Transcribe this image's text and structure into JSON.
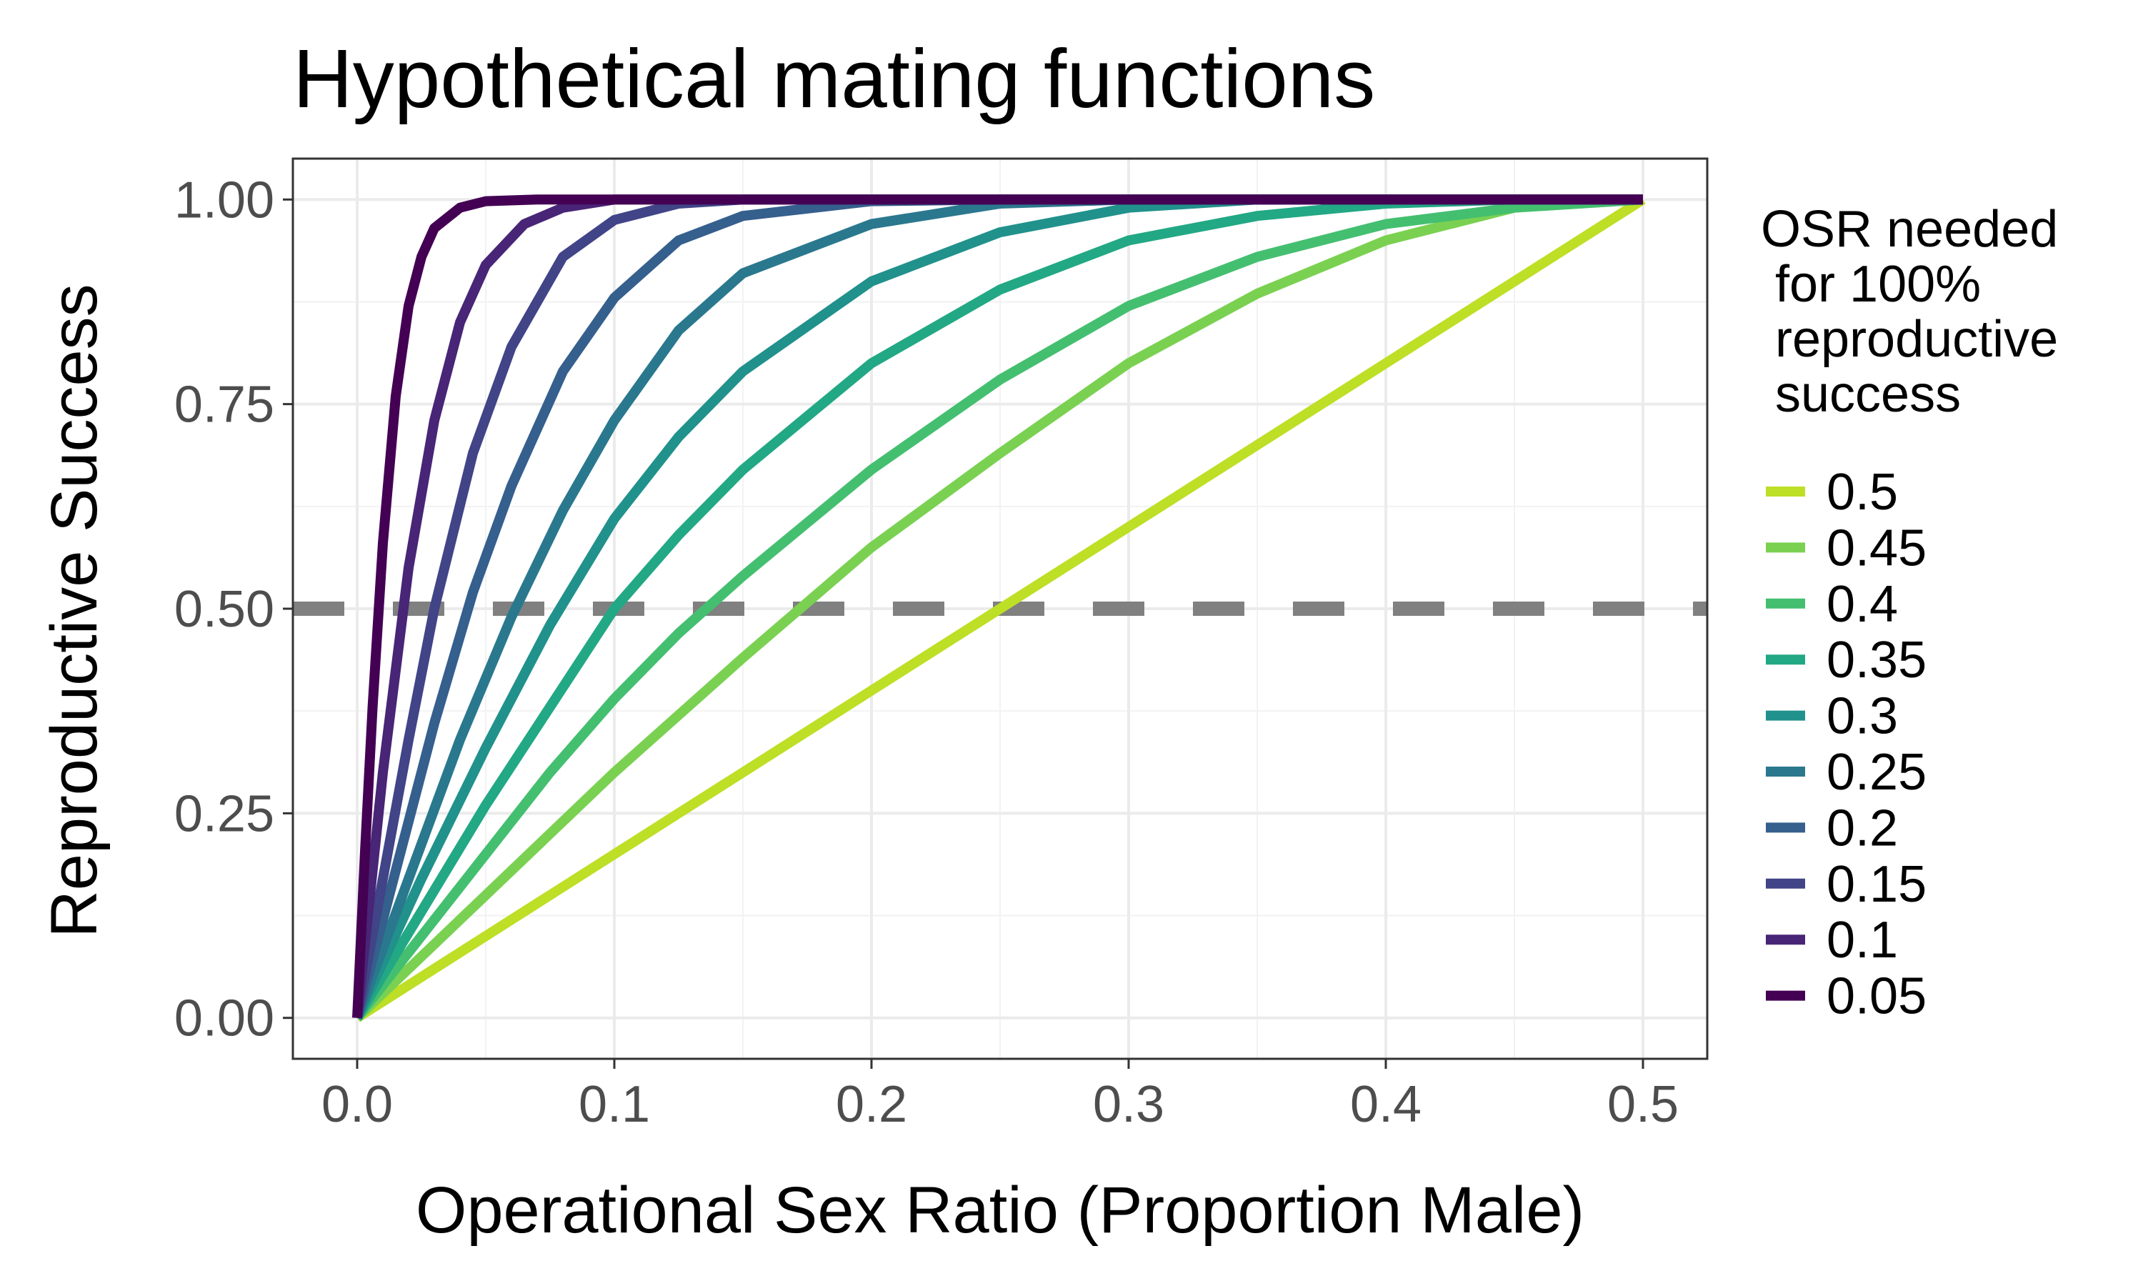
{
  "chart_data": {
    "type": "line",
    "title": "Hypothetical mating functions",
    "xlabel": "Operational Sex Ratio (Proportion Male)",
    "ylabel": "Reproductive Success",
    "xlim": [
      -0.025,
      0.525
    ],
    "ylim": [
      -0.05,
      1.05
    ],
    "x_ticks": [
      0.0,
      0.1,
      0.2,
      0.3,
      0.4,
      0.5
    ],
    "x_tick_labels": [
      "0.0",
      "0.1",
      "0.2",
      "0.3",
      "0.4",
      "0.5"
    ],
    "y_ticks": [
      0.0,
      0.25,
      0.5,
      0.75,
      1.0
    ],
    "y_tick_labels": [
      "0.00",
      "0.25",
      "0.50",
      "0.75",
      "1.00"
    ],
    "grid": true,
    "legend": {
      "title_lines": [
        "OSR needed",
        " for 100%",
        " reproductive",
        " success"
      ],
      "placement": "right"
    },
    "reference_line": {
      "y": 0.5,
      "style": "dashed",
      "color": "#808080"
    },
    "series": [
      {
        "name": "0.5",
        "color": "#bddf26",
        "x": [
          0,
          0.05,
          0.1,
          0.15,
          0.2,
          0.25,
          0.3,
          0.35,
          0.4,
          0.45,
          0.5
        ],
        "y": [
          0,
          0.1,
          0.2,
          0.3,
          0.4,
          0.5,
          0.6,
          0.7,
          0.8,
          0.9,
          1.0
        ]
      },
      {
        "name": "0.45",
        "color": "#7ad151",
        "x": [
          0,
          0.025,
          0.05,
          0.1,
          0.15,
          0.2,
          0.25,
          0.3,
          0.35,
          0.4,
          0.45,
          0.5
        ],
        "y": [
          0,
          0.075,
          0.15,
          0.3,
          0.44,
          0.575,
          0.69,
          0.8,
          0.885,
          0.95,
          0.99,
          1.0
        ]
      },
      {
        "name": "0.4",
        "color": "#44bf70",
        "x": [
          0,
          0.025,
          0.05,
          0.075,
          0.1,
          0.125,
          0.15,
          0.2,
          0.25,
          0.3,
          0.35,
          0.4,
          0.45,
          0.5
        ],
        "y": [
          0,
          0.1,
          0.2,
          0.3,
          0.39,
          0.47,
          0.54,
          0.67,
          0.78,
          0.87,
          0.93,
          0.97,
          0.99,
          1.0
        ]
      },
      {
        "name": "0.35",
        "color": "#22a884",
        "x": [
          0,
          0.025,
          0.05,
          0.075,
          0.1,
          0.125,
          0.15,
          0.2,
          0.25,
          0.3,
          0.35,
          0.4,
          0.45,
          0.5
        ],
        "y": [
          0,
          0.13,
          0.26,
          0.38,
          0.5,
          0.59,
          0.67,
          0.8,
          0.89,
          0.95,
          0.98,
          0.995,
          1.0,
          1.0
        ]
      },
      {
        "name": "0.3",
        "color": "#21918c",
        "x": [
          0,
          0.025,
          0.05,
          0.075,
          0.1,
          0.125,
          0.15,
          0.2,
          0.25,
          0.3,
          0.35,
          0.4,
          0.45,
          0.5
        ],
        "y": [
          0,
          0.17,
          0.33,
          0.48,
          0.61,
          0.71,
          0.79,
          0.9,
          0.96,
          0.99,
          1.0,
          1.0,
          1.0,
          1.0
        ]
      },
      {
        "name": "0.25",
        "color": "#2a788e",
        "x": [
          0,
          0.02,
          0.04,
          0.06,
          0.08,
          0.1,
          0.125,
          0.15,
          0.2,
          0.25,
          0.3,
          0.35,
          0.4,
          0.45,
          0.5
        ],
        "y": [
          0,
          0.17,
          0.34,
          0.49,
          0.62,
          0.73,
          0.84,
          0.91,
          0.97,
          0.995,
          1.0,
          1.0,
          1.0,
          1.0,
          1.0
        ]
      },
      {
        "name": "0.2",
        "color": "#355f8d",
        "x": [
          0,
          0.015,
          0.03,
          0.045,
          0.06,
          0.08,
          0.1,
          0.125,
          0.15,
          0.2,
          0.25,
          0.3,
          0.35,
          0.4,
          0.45,
          0.5
        ],
        "y": [
          0,
          0.18,
          0.36,
          0.52,
          0.65,
          0.79,
          0.88,
          0.95,
          0.98,
          0.998,
          1.0,
          1.0,
          1.0,
          1.0,
          1.0,
          1.0
        ]
      },
      {
        "name": "0.15",
        "color": "#414487",
        "x": [
          0,
          0.01,
          0.02,
          0.03,
          0.045,
          0.06,
          0.08,
          0.1,
          0.125,
          0.15,
          0.2,
          0.25,
          0.3,
          0.35,
          0.4,
          0.45,
          0.5
        ],
        "y": [
          0,
          0.17,
          0.34,
          0.5,
          0.69,
          0.82,
          0.93,
          0.975,
          0.995,
          1.0,
          1.0,
          1.0,
          1.0,
          1.0,
          1.0,
          1.0,
          1.0
        ]
      },
      {
        "name": "0.1",
        "color": "#482576",
        "x": [
          0,
          0.005,
          0.01,
          0.02,
          0.03,
          0.04,
          0.05,
          0.065,
          0.08,
          0.1,
          0.15,
          0.2,
          0.25,
          0.3,
          0.35,
          0.4,
          0.45,
          0.5
        ],
        "y": [
          0,
          0.15,
          0.3,
          0.55,
          0.73,
          0.85,
          0.92,
          0.97,
          0.99,
          1.0,
          1.0,
          1.0,
          1.0,
          1.0,
          1.0,
          1.0,
          1.0,
          1.0
        ]
      },
      {
        "name": "0.05",
        "color": "#440154",
        "x": [
          0,
          0.003,
          0.006,
          0.01,
          0.015,
          0.02,
          0.025,
          0.03,
          0.04,
          0.05,
          0.07,
          0.1,
          0.15,
          0.2,
          0.25,
          0.3,
          0.35,
          0.4,
          0.45,
          0.5
        ],
        "y": [
          0,
          0.2,
          0.38,
          0.58,
          0.76,
          0.87,
          0.93,
          0.965,
          0.99,
          0.998,
          1.0,
          1.0,
          1.0,
          1.0,
          1.0,
          1.0,
          1.0,
          1.0,
          1.0,
          1.0
        ]
      }
    ]
  }
}
